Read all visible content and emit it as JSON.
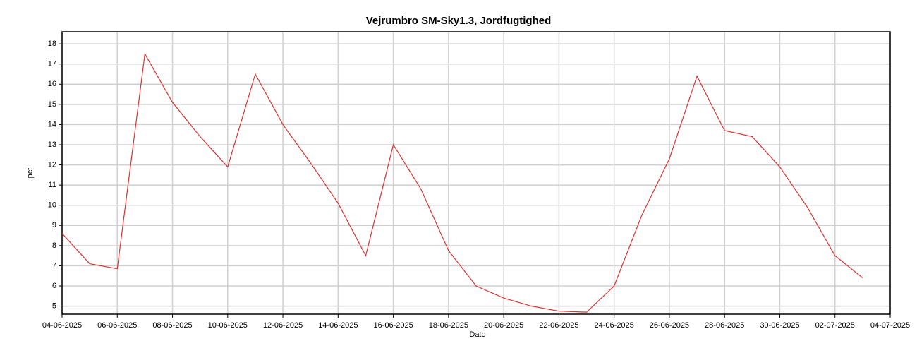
{
  "chart_data": {
    "type": "line",
    "title": "Vejrumbro SM-Sky1.3, Jordfugtighed",
    "x_label": "Dato",
    "y_label": "pct",
    "x": [
      "04-06-2025",
      "05-06-2025",
      "06-06-2025",
      "07-06-2025",
      "08-06-2025",
      "09-06-2025",
      "10-06-2025",
      "11-06-2025",
      "12-06-2025",
      "13-06-2025",
      "14-06-2025",
      "15-06-2025",
      "16-06-2025",
      "17-06-2025",
      "18-06-2025",
      "19-06-2025",
      "20-06-2025",
      "21-06-2025",
      "22-06-2025",
      "23-06-2025",
      "24-06-2025",
      "25-06-2025",
      "26-06-2025",
      "27-06-2025",
      "28-06-2025",
      "29-06-2025",
      "30-06-2025",
      "01-07-2025",
      "02-07-2025",
      "03-07-2025"
    ],
    "series": [
      {
        "name": "pct",
        "color": "#e03030",
        "values": [
          8.6,
          7.1,
          6.85,
          17.5,
          15.1,
          13.4,
          11.9,
          16.5,
          14.0,
          12.1,
          10.1,
          7.5,
          13.0,
          10.8,
          7.75,
          6.0,
          5.4,
          5.0,
          4.75,
          4.7,
          6.0,
          9.5,
          12.3,
          16.4,
          13.7,
          13.4,
          11.9,
          9.9,
          7.5,
          6.4
        ]
      }
    ],
    "xlim": [
      "04-06-2025",
      "04-07-2025"
    ],
    "xticks": [
      "04-06-2025",
      "06-06-2025",
      "08-06-2025",
      "10-06-2025",
      "12-06-2025",
      "14-06-2025",
      "16-06-2025",
      "18-06-2025",
      "20-06-2025",
      "22-06-2025",
      "24-06-2025",
      "26-06-2025",
      "28-06-2025",
      "30-06-2025",
      "02-07-2025",
      "04-07-2025"
    ],
    "ylim": [
      4.6,
      18.6
    ],
    "yticks": [
      5,
      6,
      7,
      8,
      9,
      10,
      11,
      12,
      13,
      14,
      15,
      16,
      17,
      18
    ],
    "grid": true
  }
}
